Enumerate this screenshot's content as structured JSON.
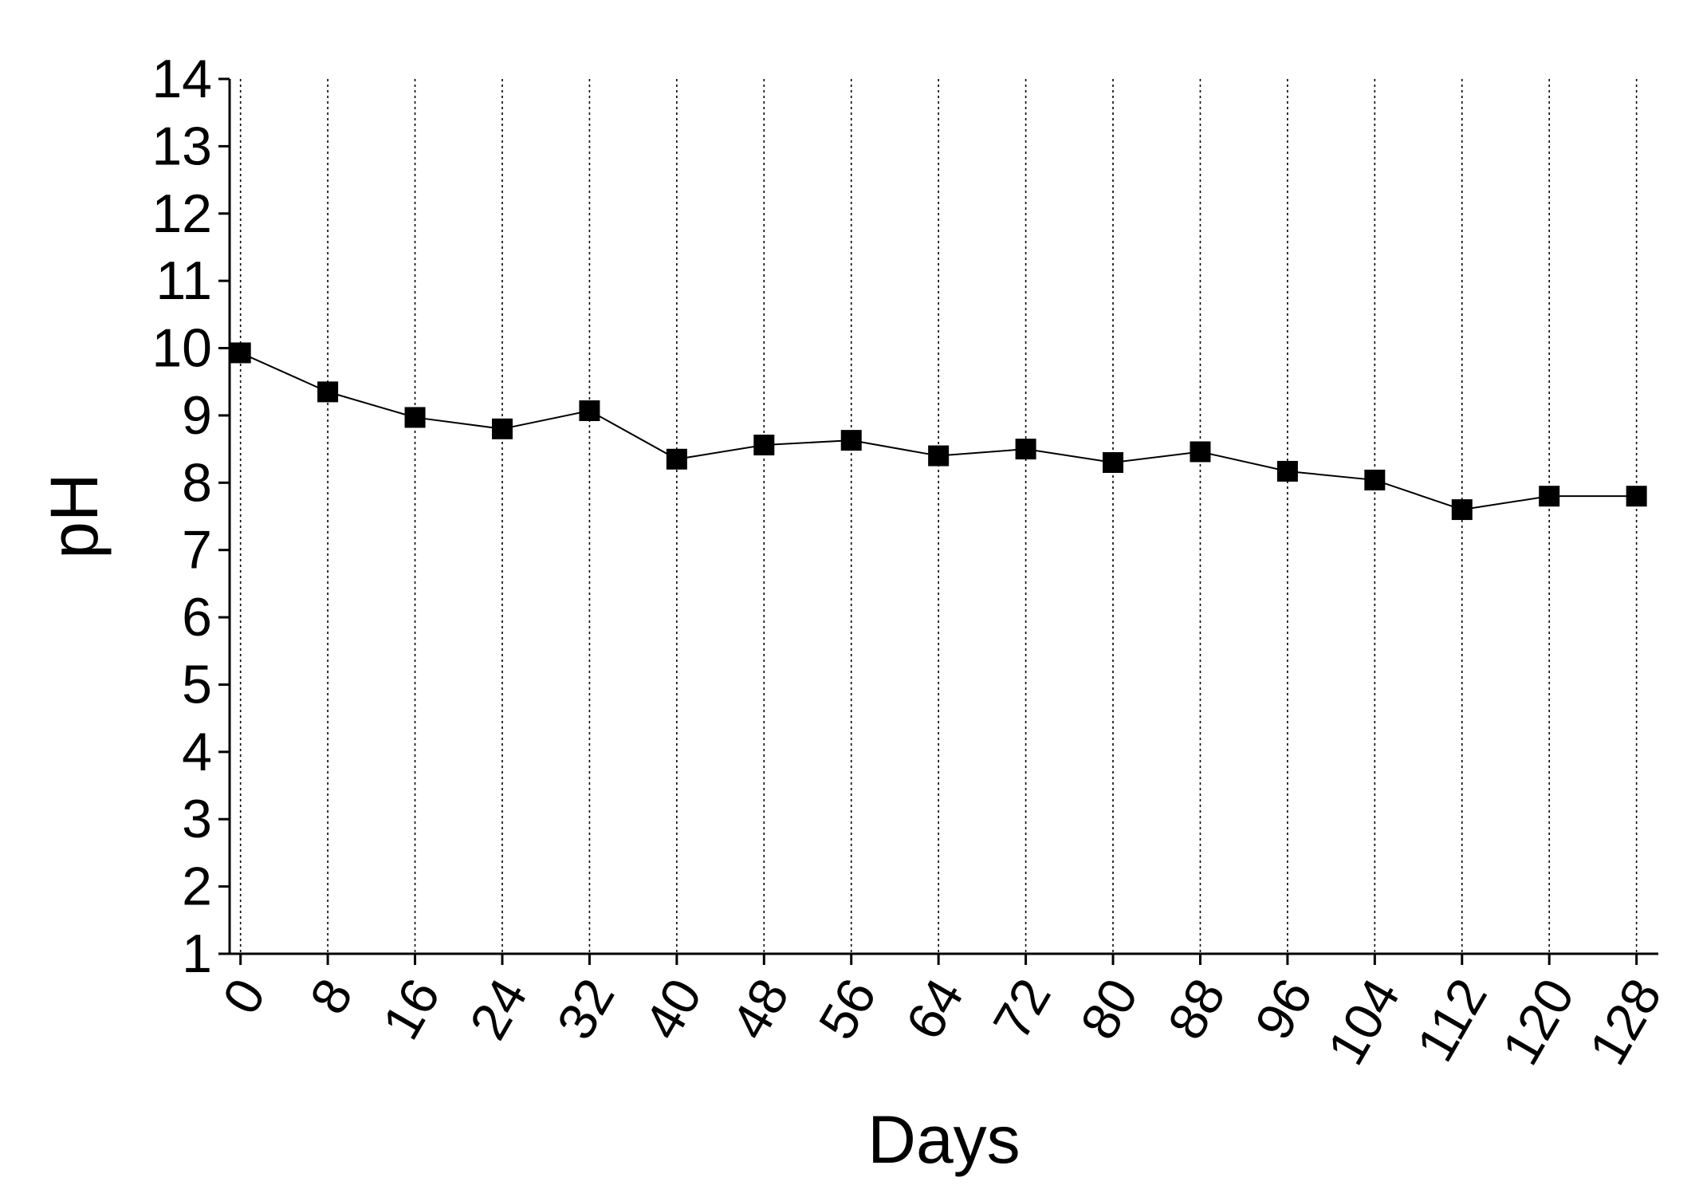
{
  "chart_data": {
    "type": "line",
    "x_label": "Days",
    "y_label": "pH",
    "x": [
      0,
      8,
      16,
      24,
      32,
      40,
      48,
      56,
      64,
      72,
      80,
      88,
      96,
      104,
      112,
      120,
      128
    ],
    "series": [
      {
        "color": "#000000",
        "values": [
          9.93,
          9.35,
          8.97,
          8.8,
          9.07,
          8.35,
          8.56,
          8.63,
          8.4,
          8.5,
          8.3,
          8.46,
          8.17,
          8.04,
          7.6,
          7.8,
          7.8
        ]
      }
    ],
    "xlim": [
      -1,
      130
    ],
    "xticks": [
      0,
      8,
      16,
      24,
      32,
      40,
      48,
      56,
      64,
      72,
      80,
      88,
      96,
      104,
      112,
      120,
      128
    ],
    "ylim": [
      1,
      14
    ],
    "yticks": [
      1,
      2,
      3,
      4,
      5,
      6,
      7,
      8,
      9,
      10,
      11,
      12,
      13,
      14
    ],
    "grid": "x"
  }
}
